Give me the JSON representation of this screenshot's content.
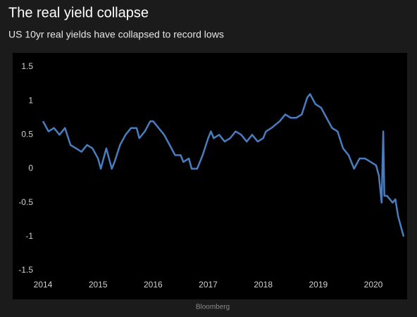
{
  "chart_data": {
    "type": "line",
    "title": "The real yield collapse",
    "subtitle": "US 10yr real yields have collapsed to record lows",
    "source": "Bloomberg",
    "color": "#4a7dbf",
    "x": [
      2014.0,
      2014.1,
      2014.2,
      2014.3,
      2014.4,
      2014.5,
      2014.6,
      2014.7,
      2014.8,
      2014.9,
      2015.0,
      2015.05,
      2015.15,
      2015.25,
      2015.3,
      2015.4,
      2015.5,
      2015.6,
      2015.7,
      2015.75,
      2015.85,
      2015.95,
      2016.0,
      2016.1,
      2016.2,
      2016.3,
      2016.4,
      2016.5,
      2016.55,
      2016.65,
      2016.7,
      2016.8,
      2016.9,
      2017.0,
      2017.05,
      2017.1,
      2017.2,
      2017.3,
      2017.4,
      2017.5,
      2017.6,
      2017.7,
      2017.8,
      2017.9,
      2018.0,
      2018.05,
      2018.15,
      2018.3,
      2018.4,
      2018.5,
      2018.6,
      2018.7,
      2018.8,
      2018.85,
      2018.95,
      2019.05,
      2019.15,
      2019.25,
      2019.35,
      2019.45,
      2019.55,
      2019.65,
      2019.75,
      2019.85,
      2019.95,
      2020.05,
      2020.1,
      2020.15,
      2020.18,
      2020.2,
      2020.25,
      2020.3,
      2020.35,
      2020.4,
      2020.45,
      2020.5,
      2020.55
    ],
    "values": [
      0.7,
      0.55,
      0.6,
      0.5,
      0.6,
      0.35,
      0.3,
      0.25,
      0.35,
      0.3,
      0.15,
      0.0,
      0.3,
      0.0,
      0.1,
      0.35,
      0.5,
      0.6,
      0.6,
      0.45,
      0.55,
      0.7,
      0.7,
      0.6,
      0.5,
      0.35,
      0.2,
      0.2,
      0.1,
      0.15,
      0.0,
      0.0,
      0.2,
      0.45,
      0.55,
      0.45,
      0.5,
      0.4,
      0.45,
      0.55,
      0.5,
      0.4,
      0.5,
      0.4,
      0.45,
      0.55,
      0.6,
      0.7,
      0.8,
      0.75,
      0.75,
      0.8,
      1.05,
      1.1,
      0.95,
      0.9,
      0.75,
      0.6,
      0.55,
      0.3,
      0.2,
      0.0,
      0.15,
      0.15,
      0.1,
      0.05,
      -0.1,
      -0.5,
      0.55,
      -0.4,
      -0.4,
      -0.45,
      -0.5,
      -0.45,
      -0.7,
      -0.85,
      -1.0
    ],
    "xlim": [
      2014,
      2020.6
    ],
    "xticks": [
      2014,
      2015,
      2016,
      2017,
      2018,
      2019,
      2020
    ],
    "ylim": [
      -1.5,
      1.5
    ],
    "yticks": [
      -1.5,
      -1,
      -0.5,
      0,
      0.5,
      1,
      1.5
    ]
  }
}
